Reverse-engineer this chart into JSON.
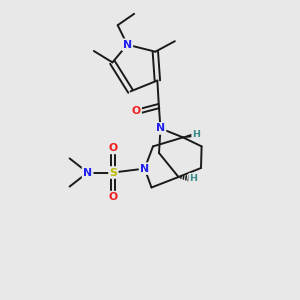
{
  "bg_color": "#e8e8e8",
  "bond_color": "#1a1a1a",
  "bond_width": 1.4,
  "N_color": "#2020ee",
  "O_color": "#ee2020",
  "S_color": "#bbbb00",
  "H_color": "#3a8a8a",
  "figsize": [
    3.0,
    3.0
  ],
  "dpi": 100,
  "xlim": [
    0,
    10
  ],
  "ylim": [
    0,
    10
  ]
}
